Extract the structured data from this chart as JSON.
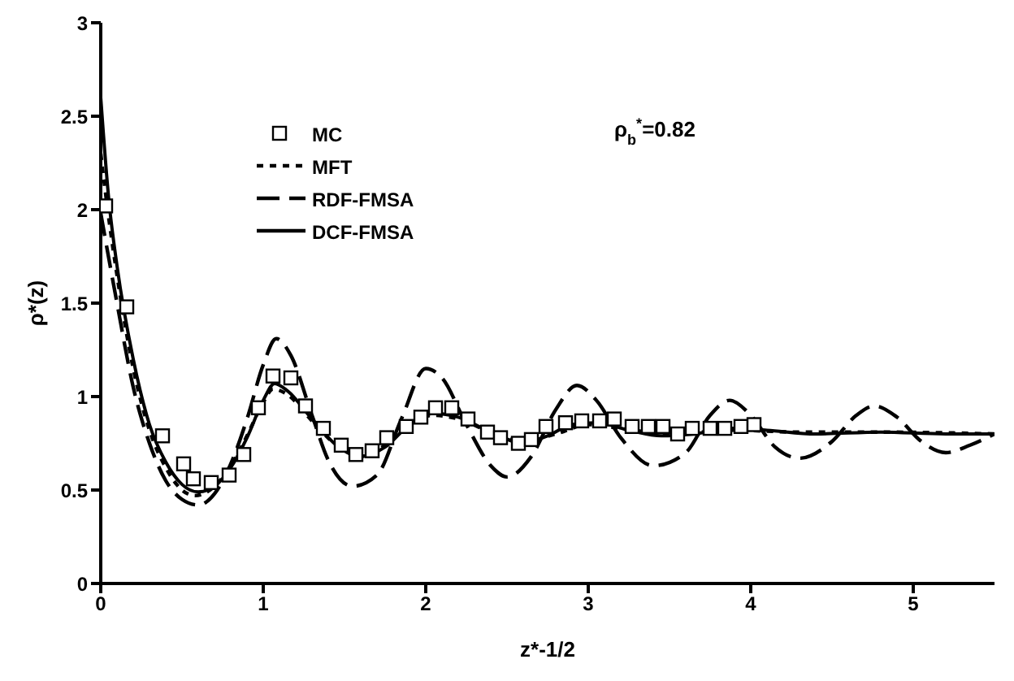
{
  "chart_data": {
    "type": "line",
    "xlabel": "z*-1/2",
    "ylabel": "ρ*(z)",
    "annotations": [
      "ρ$_{b}$$^{*}$=0.82"
    ],
    "xlim": [
      0,
      5.5
    ],
    "xticks": [
      0,
      1,
      2,
      3,
      4,
      5
    ],
    "ylim": [
      0,
      3
    ],
    "yticks": [
      0,
      0.5,
      1,
      1.5,
      2,
      2.5,
      3
    ],
    "grid": false,
    "legend": "top left",
    "series": [
      {
        "name": "MC",
        "type": "scatter",
        "marker": "square",
        "color": "#000000",
        "x": [
          0.03,
          0.16,
          0.38,
          0.51,
          0.57,
          0.68,
          0.79,
          0.88,
          0.97,
          1.06,
          1.17,
          1.26,
          1.37,
          1.48,
          1.57,
          1.67,
          1.76,
          1.88,
          1.97,
          2.06,
          2.16,
          2.26,
          2.38,
          2.46,
          2.57,
          2.65,
          2.74,
          2.86,
          2.96,
          3.07,
          3.16,
          3.27,
          3.37,
          3.46,
          3.55,
          3.64,
          3.75,
          3.84,
          3.94,
          4.02
        ],
        "values": [
          2.02,
          1.48,
          0.79,
          0.64,
          0.56,
          0.54,
          0.58,
          0.69,
          0.94,
          1.11,
          1.1,
          0.95,
          0.83,
          0.74,
          0.69,
          0.71,
          0.78,
          0.84,
          0.89,
          0.94,
          0.94,
          0.88,
          0.81,
          0.78,
          0.75,
          0.77,
          0.84,
          0.86,
          0.87,
          0.87,
          0.88,
          0.84,
          0.84,
          0.84,
          0.8,
          0.83,
          0.83,
          0.83,
          0.84,
          0.85
        ]
      },
      {
        "name": "MFT",
        "line_style": "dotted",
        "color": "#000000",
        "x": [
          0,
          0.05,
          0.1,
          0.2,
          0.3,
          0.4,
          0.5,
          0.58,
          0.7,
          0.8,
          0.9,
          1.0,
          1.06,
          1.15,
          1.3,
          1.45,
          1.6,
          1.75,
          1.9,
          2.05,
          2.2,
          2.4,
          2.6,
          2.8,
          3.0,
          3.2,
          3.5,
          3.9,
          4.3,
          4.8,
          5.5
        ],
        "values": [
          2.3,
          1.95,
          1.65,
          1.15,
          0.82,
          0.62,
          0.5,
          0.47,
          0.52,
          0.63,
          0.79,
          0.97,
          1.04,
          1.01,
          0.87,
          0.74,
          0.68,
          0.74,
          0.85,
          0.9,
          0.88,
          0.81,
          0.76,
          0.8,
          0.85,
          0.83,
          0.8,
          0.82,
          0.81,
          0.81,
          0.8
        ]
      },
      {
        "name": "RDF-FMSA",
        "line_style": "dashed",
        "color": "#000000",
        "x": [
          0,
          0.1,
          0.2,
          0.3,
          0.4,
          0.5,
          0.6,
          0.7,
          0.8,
          0.9,
          1.0,
          1.08,
          1.17,
          1.3,
          1.4,
          1.55,
          1.7,
          1.85,
          2.0,
          2.1,
          2.25,
          2.4,
          2.5,
          2.65,
          2.8,
          2.93,
          3.05,
          3.2,
          3.4,
          3.6,
          3.75,
          3.87,
          4.0,
          4.15,
          4.3,
          4.5,
          4.65,
          4.76,
          4.9,
          5.05,
          5.2,
          5.35,
          5.5
        ],
        "values": [
          1.98,
          1.5,
          1.05,
          0.75,
          0.55,
          0.45,
          0.42,
          0.48,
          0.64,
          0.88,
          1.17,
          1.31,
          1.22,
          0.9,
          0.66,
          0.52,
          0.58,
          0.88,
          1.15,
          1.1,
          0.85,
          0.63,
          0.57,
          0.68,
          0.93,
          1.06,
          0.98,
          0.78,
          0.63,
          0.7,
          0.9,
          0.98,
          0.9,
          0.73,
          0.67,
          0.76,
          0.9,
          0.95,
          0.89,
          0.76,
          0.7,
          0.74,
          0.8
        ]
      },
      {
        "name": "DCF-FMSA",
        "line_style": "solid",
        "color": "#000000",
        "x": [
          0,
          0.05,
          0.1,
          0.2,
          0.3,
          0.4,
          0.5,
          0.6,
          0.7,
          0.8,
          0.9,
          1.0,
          1.07,
          1.15,
          1.3,
          1.45,
          1.6,
          1.75,
          1.9,
          2.05,
          2.2,
          2.4,
          2.6,
          2.75,
          2.9,
          3.05,
          3.25,
          3.45,
          3.65,
          3.9,
          4.1,
          4.4,
          4.8,
          5.2,
          5.5
        ],
        "values": [
          2.6,
          2.05,
          1.7,
          1.2,
          0.85,
          0.65,
          0.53,
          0.49,
          0.52,
          0.62,
          0.78,
          0.98,
          1.07,
          1.03,
          0.88,
          0.74,
          0.68,
          0.73,
          0.85,
          0.91,
          0.89,
          0.81,
          0.75,
          0.79,
          0.85,
          0.86,
          0.82,
          0.79,
          0.8,
          0.83,
          0.82,
          0.8,
          0.81,
          0.8,
          0.8
        ]
      }
    ]
  }
}
